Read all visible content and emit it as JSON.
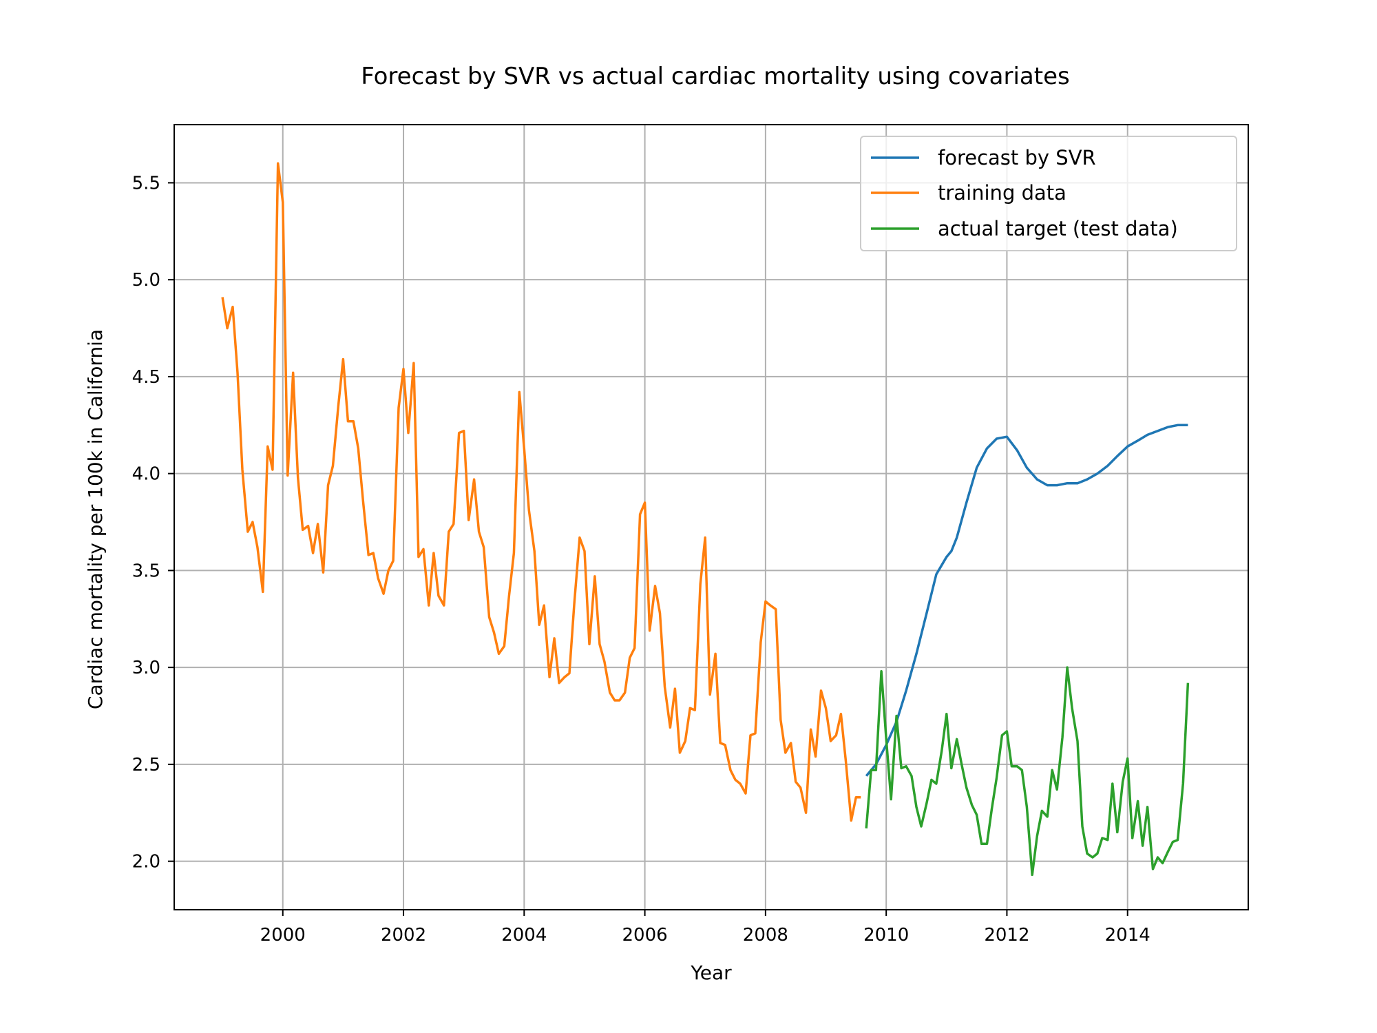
{
  "chart_data": {
    "type": "line",
    "title": "Forecast by SVR vs actual cardiac mortality using covariates",
    "xlabel": "Year",
    "ylabel": "Cardiac mortality per 100k in California",
    "xlim": [
      1998.2,
      2016.0
    ],
    "ylim": [
      1.75,
      5.8
    ],
    "xticks": [
      2000,
      2002,
      2004,
      2006,
      2008,
      2010,
      2012,
      2014
    ],
    "xtick_labels": [
      "2000",
      "2002",
      "2004",
      "2006",
      "2008",
      "2010",
      "2012",
      "2014"
    ],
    "yticks": [
      2.0,
      2.5,
      3.0,
      3.5,
      4.0,
      4.5,
      5.0,
      5.5
    ],
    "ytick_labels": [
      "2.0",
      "2.5",
      "3.0",
      "3.5",
      "4.0",
      "4.5",
      "5.0",
      "5.5"
    ],
    "grid": true,
    "legend_position": "top-right",
    "series": [
      {
        "name": "forecast by SVR",
        "color": "#1f77b4",
        "x": [
          2009.67,
          2009.83,
          2010.0,
          2010.17,
          2010.33,
          2010.5,
          2010.67,
          2010.83,
          2011.0,
          2011.08,
          2011.17,
          2011.33,
          2011.5,
          2011.67,
          2011.83,
          2012.0,
          2012.17,
          2012.33,
          2012.5,
          2012.67,
          2012.83,
          2013.0,
          2013.17,
          2013.33,
          2013.5,
          2013.67,
          2013.83,
          2014.0,
          2014.17,
          2014.33,
          2014.5,
          2014.67,
          2014.83,
          2015.0
        ],
        "y": [
          2.44,
          2.5,
          2.6,
          2.72,
          2.88,
          3.07,
          3.28,
          3.48,
          3.57,
          3.6,
          3.67,
          3.85,
          4.03,
          4.13,
          4.18,
          4.19,
          4.12,
          4.03,
          3.97,
          3.94,
          3.94,
          3.95,
          3.95,
          3.97,
          4.0,
          4.04,
          4.09,
          4.14,
          4.17,
          4.2,
          4.22,
          4.24,
          4.25,
          4.25
        ]
      },
      {
        "name": "training data",
        "color": "#ff7f0e",
        "x": [
          1999.0,
          1999.08,
          1999.17,
          1999.25,
          1999.33,
          1999.42,
          1999.5,
          1999.58,
          1999.67,
          1999.75,
          1999.83,
          1999.92,
          2000.0,
          2000.08,
          2000.17,
          2000.25,
          2000.33,
          2000.42,
          2000.5,
          2000.58,
          2000.67,
          2000.75,
          2000.83,
          2000.92,
          2001.0,
          2001.08,
          2001.17,
          2001.25,
          2001.33,
          2001.42,
          2001.5,
          2001.58,
          2001.67,
          2001.75,
          2001.83,
          2001.92,
          2002.0,
          2002.08,
          2002.17,
          2002.25,
          2002.33,
          2002.42,
          2002.5,
          2002.58,
          2002.67,
          2002.75,
          2002.83,
          2002.92,
          2003.0,
          2003.08,
          2003.17,
          2003.25,
          2003.33,
          2003.42,
          2003.5,
          2003.58,
          2003.67,
          2003.75,
          2003.83,
          2003.92,
          2004.0,
          2004.08,
          2004.17,
          2004.25,
          2004.33,
          2004.42,
          2004.5,
          2004.58,
          2004.67,
          2004.75,
          2004.83,
          2004.92,
          2005.0,
          2005.08,
          2005.17,
          2005.25,
          2005.33,
          2005.42,
          2005.5,
          2005.58,
          2005.67,
          2005.75,
          2005.83,
          2005.92,
          2006.0,
          2006.08,
          2006.17,
          2006.25,
          2006.33,
          2006.42,
          2006.5,
          2006.58,
          2006.67,
          2006.75,
          2006.83,
          2006.92,
          2007.0,
          2007.08,
          2007.17,
          2007.25,
          2007.33,
          2007.42,
          2007.5,
          2007.58,
          2007.67,
          2007.75,
          2007.83,
          2007.92,
          2008.0,
          2008.08,
          2008.17,
          2008.25,
          2008.33,
          2008.42,
          2008.5,
          2008.58,
          2008.67,
          2008.75,
          2008.83,
          2008.92,
          2009.0,
          2009.08,
          2009.17,
          2009.25,
          2009.33,
          2009.42,
          2009.5,
          2009.58
        ],
        "y": [
          4.91,
          4.75,
          4.86,
          4.52,
          4.02,
          3.7,
          3.75,
          3.62,
          3.39,
          4.14,
          4.02,
          5.6,
          5.4,
          3.99,
          4.52,
          3.98,
          3.71,
          3.73,
          3.59,
          3.74,
          3.49,
          3.94,
          4.04,
          4.35,
          4.59,
          4.27,
          4.27,
          4.13,
          3.86,
          3.58,
          3.59,
          3.46,
          3.38,
          3.5,
          3.55,
          4.34,
          4.54,
          4.21,
          4.57,
          3.57,
          3.61,
          3.32,
          3.59,
          3.37,
          3.32,
          3.7,
          3.74,
          4.21,
          4.22,
          3.76,
          3.97,
          3.7,
          3.62,
          3.26,
          3.18,
          3.07,
          3.11,
          3.37,
          3.59,
          4.42,
          4.13,
          3.81,
          3.6,
          3.22,
          3.32,
          2.95,
          3.15,
          2.92,
          2.95,
          2.97,
          3.33,
          3.67,
          3.6,
          3.12,
          3.47,
          3.12,
          3.03,
          2.87,
          2.83,
          2.83,
          2.87,
          3.05,
          3.1,
          3.79,
          3.85,
          3.19,
          3.42,
          3.28,
          2.9,
          2.69,
          2.89,
          2.56,
          2.62,
          2.79,
          2.78,
          3.43,
          3.67,
          2.86,
          3.07,
          2.61,
          2.6,
          2.47,
          2.42,
          2.4,
          2.35,
          2.65,
          2.66,
          3.13,
          3.34,
          3.32,
          3.3,
          2.73,
          2.56,
          2.61,
          2.41,
          2.38,
          2.25,
          2.68,
          2.54,
          2.88,
          2.79,
          2.62,
          2.65,
          2.76,
          2.52,
          2.21,
          2.33,
          2.33
        ]
      },
      {
        "name": "actual target (test data)",
        "color": "#2ca02c",
        "x": [
          2009.67,
          2009.75,
          2009.83,
          2009.92,
          2010.0,
          2010.08,
          2010.17,
          2010.25,
          2010.33,
          2010.42,
          2010.5,
          2010.58,
          2010.67,
          2010.75,
          2010.83,
          2010.92,
          2011.0,
          2011.08,
          2011.17,
          2011.25,
          2011.33,
          2011.42,
          2011.5,
          2011.58,
          2011.67,
          2011.75,
          2011.83,
          2011.92,
          2012.0,
          2012.08,
          2012.17,
          2012.25,
          2012.33,
          2012.42,
          2012.5,
          2012.58,
          2012.67,
          2012.75,
          2012.83,
          2012.92,
          2013.0,
          2013.08,
          2013.17,
          2013.25,
          2013.33,
          2013.42,
          2013.5,
          2013.58,
          2013.67,
          2013.75,
          2013.83,
          2013.92,
          2014.0,
          2014.08,
          2014.17,
          2014.25,
          2014.33,
          2014.42,
          2014.5,
          2014.58,
          2014.67,
          2014.75,
          2014.83,
          2014.92,
          2015.0
        ],
        "y": [
          2.17,
          2.47,
          2.47,
          2.98,
          2.63,
          2.32,
          2.75,
          2.48,
          2.49,
          2.44,
          2.28,
          2.18,
          2.3,
          2.42,
          2.4,
          2.57,
          2.76,
          2.48,
          2.63,
          2.5,
          2.38,
          2.29,
          2.24,
          2.09,
          2.09,
          2.27,
          2.43,
          2.65,
          2.67,
          2.49,
          2.49,
          2.47,
          2.28,
          1.93,
          2.13,
          2.26,
          2.23,
          2.47,
          2.37,
          2.64,
          3.0,
          2.79,
          2.62,
          2.18,
          2.04,
          2.02,
          2.04,
          2.12,
          2.11,
          2.4,
          2.15,
          2.41,
          2.53,
          2.12,
          2.31,
          2.08,
          2.28,
          1.96,
          2.02,
          1.99,
          2.05,
          2.1,
          2.11,
          2.4,
          2.92
        ]
      }
    ]
  }
}
